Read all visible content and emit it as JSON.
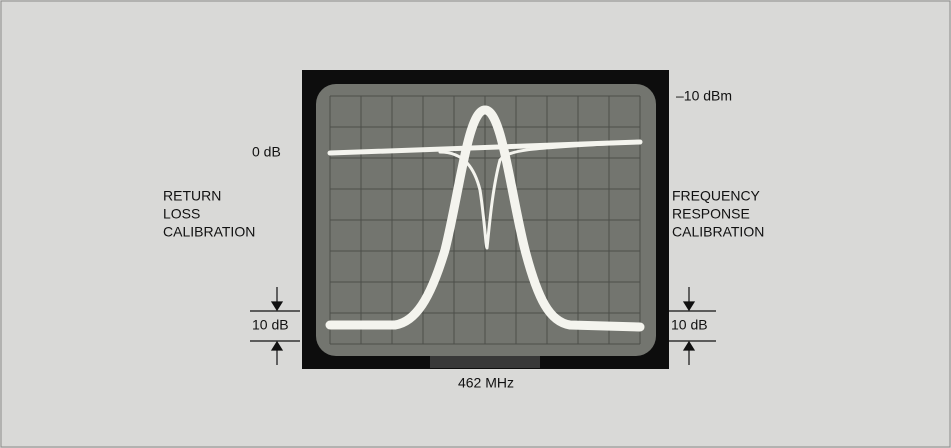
{
  "labels": {
    "reference_level": "–10 dBm",
    "zero": "0 dB",
    "left_caption": [
      "RETURN",
      "LOSS",
      "CALIBRATION"
    ],
    "right_caption": [
      "FREQUENCY",
      "RESPONSE",
      "CALIBRATION"
    ],
    "left_scale": "10 dB",
    "right_scale": "10 dB",
    "frequency": "462 MHz"
  }
}
